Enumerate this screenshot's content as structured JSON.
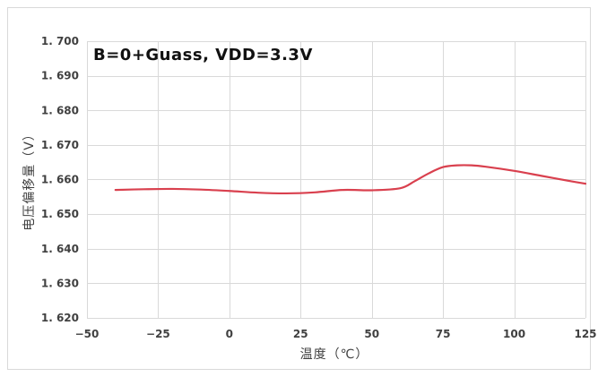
{
  "chart_data": {
    "type": "line",
    "title": "",
    "annotation": "B=0+Guass, VDD=3.3V",
    "xlabel": "温度（℃）",
    "ylabel": "电压偏移量（V）",
    "xlim": [
      -50,
      125
    ],
    "ylim": [
      1.62,
      1.7
    ],
    "x_ticks": [
      "−50",
      "−25",
      "0",
      "25",
      "50",
      "75",
      "100",
      "125"
    ],
    "y_ticks": [
      "1. 620",
      "1. 630",
      "1. 640",
      "1. 650",
      "1. 660",
      "1. 670",
      "1. 680",
      "1. 690",
      "1. 700"
    ],
    "grid": true,
    "series": [
      {
        "color": "#d9404e",
        "x": [
          -40,
          -30,
          -20,
          -10,
          0,
          10,
          20,
          30,
          40,
          50,
          60,
          65,
          70,
          75,
          80,
          85,
          90,
          100,
          110,
          120,
          125
        ],
        "y": [
          1.657,
          1.6572,
          1.6573,
          1.6571,
          1.6567,
          1.6562,
          1.656,
          1.6563,
          1.657,
          1.6569,
          1.6575,
          1.6595,
          1.6618,
          1.6636,
          1.6641,
          1.6641,
          1.6637,
          1.6625,
          1.661,
          1.6595,
          1.6588
        ]
      }
    ]
  }
}
